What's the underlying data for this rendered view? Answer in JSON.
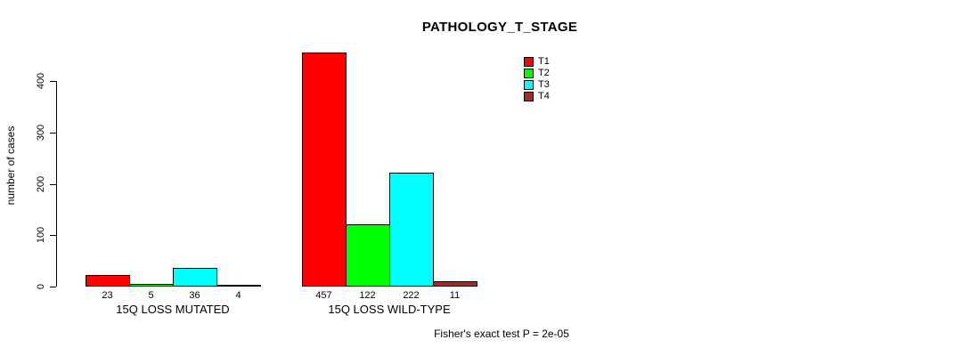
{
  "chart_data": {
    "type": "bar",
    "title": "PATHOLOGY_T_STAGE",
    "ylabel": "number of cases",
    "xlabel": "",
    "ylim": [
      0,
      400
    ],
    "yticks": [
      0,
      100,
      200,
      300,
      400
    ],
    "categories": [
      "15Q LOSS MUTATED",
      "15Q LOSS WILD-TYPE"
    ],
    "series": [
      {
        "name": "T1",
        "color": "#FF0000",
        "values": [
          23,
          457
        ]
      },
      {
        "name": "T2",
        "color": "#00FF00",
        "values": [
          5,
          122
        ]
      },
      {
        "name": "T3",
        "color": "#00FFFF",
        "values": [
          36,
          222
        ]
      },
      {
        "name": "T4",
        "color": "#A52A2A",
        "values": [
          4,
          11
        ]
      }
    ],
    "bar_value_labels": [
      [
        "23",
        "5",
        "36",
        "4"
      ],
      [
        "457",
        "122",
        "222",
        "11"
      ]
    ],
    "legend_position": "top-right",
    "grid": false,
    "annotation": "Fisher's exact test P = 2e-05"
  },
  "layout_colors": {
    "background": "#FFFFFF",
    "axis": "#000000",
    "text": "#000000"
  }
}
